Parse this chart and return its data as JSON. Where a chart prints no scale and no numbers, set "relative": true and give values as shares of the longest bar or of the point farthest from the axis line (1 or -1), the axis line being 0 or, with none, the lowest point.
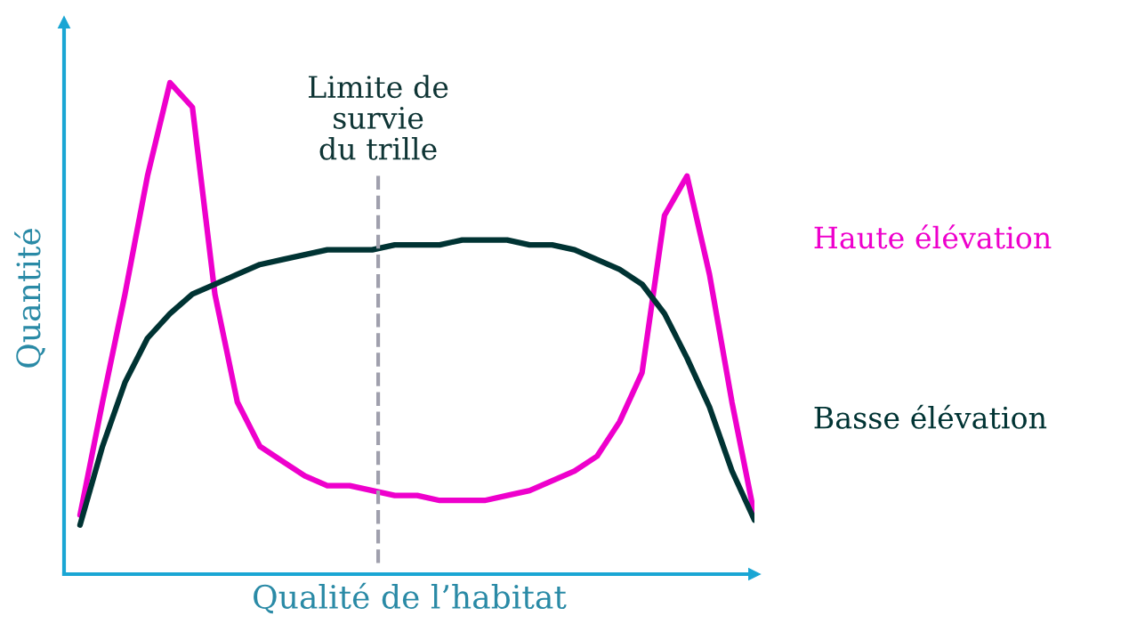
{
  "chart_data": {
    "type": "line",
    "relative": true,
    "xlabel": "Qualité de l’habitat",
    "ylabel": "Quantité",
    "categories": [
      null,
      null,
      null,
      null,
      null,
      null,
      null,
      null,
      null,
      null,
      null,
      null,
      null,
      null,
      null,
      null,
      null,
      null,
      null,
      null,
      null,
      null,
      null,
      null,
      null,
      null,
      null,
      null,
      null,
      null,
      null
    ],
    "series": [
      {
        "name": "Haute élévation",
        "color": "#ee00cc",
        "values": [
          0.12,
          0.35,
          0.57,
          0.81,
          1.0,
          0.95,
          0.57,
          0.35,
          0.26,
          0.23,
          0.2,
          0.18,
          0.18,
          0.17,
          0.16,
          0.16,
          0.15,
          0.15,
          0.15,
          0.16,
          0.17,
          0.19,
          0.21,
          0.24,
          0.31,
          0.41,
          0.73,
          0.81,
          0.61,
          0.35,
          0.12
        ]
      },
      {
        "name": "Basse élévation",
        "color": "#003333",
        "values": [
          0.1,
          0.26,
          0.39,
          0.48,
          0.53,
          0.57,
          0.59,
          0.61,
          0.63,
          0.64,
          0.65,
          0.66,
          0.66,
          0.66,
          0.67,
          0.67,
          0.67,
          0.68,
          0.68,
          0.68,
          0.67,
          0.67,
          0.66,
          0.64,
          0.62,
          0.59,
          0.53,
          0.44,
          0.34,
          0.21,
          0.11
        ]
      }
    ],
    "annotations": [
      "Limite de\nsurvie\ndu trille"
    ],
    "legend": false,
    "marker": "none",
    "line_style": "solid"
  }
}
